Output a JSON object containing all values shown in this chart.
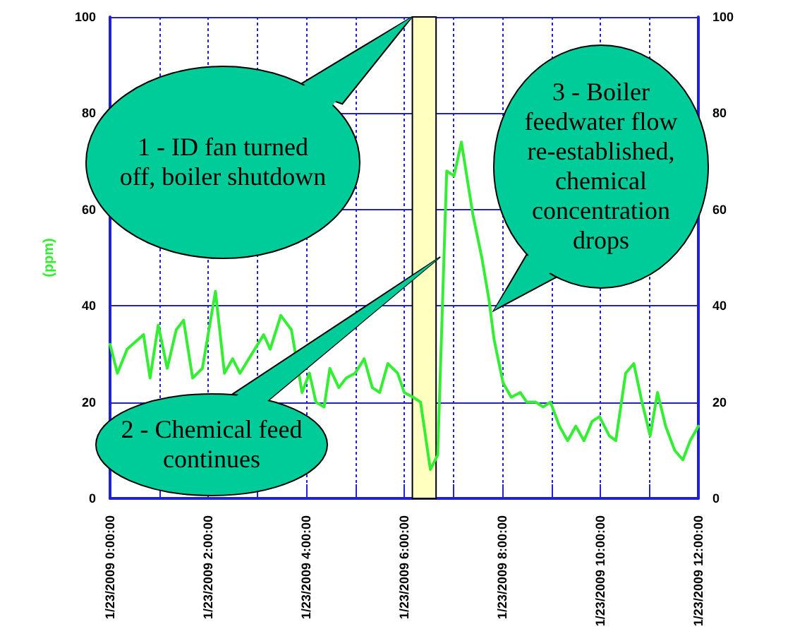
{
  "chart_data": {
    "type": "line",
    "ylabel": "(ppm)",
    "x": [
      "2009-01-23T00:00",
      "2009-01-23T00:09",
      "2009-01-23T00:21",
      "2009-01-23T00:41",
      "2009-01-23T00:49",
      "2009-01-23T00:59",
      "2009-01-23T01:10",
      "2009-01-23T01:21",
      "2009-01-23T01:30",
      "2009-01-23T01:41",
      "2009-01-23T01:53",
      "2009-01-23T02:09",
      "2009-01-23T02:20",
      "2009-01-23T02:30",
      "2009-01-23T02:39",
      "2009-01-23T03:08",
      "2009-01-23T03:16",
      "2009-01-23T03:29",
      "2009-01-23T03:42",
      "2009-01-23T03:55",
      "2009-01-23T04:04",
      "2009-01-23T04:12",
      "2009-01-23T04:22",
      "2009-01-23T04:29",
      "2009-01-23T04:40",
      "2009-01-23T04:49",
      "2009-01-23T05:00",
      "2009-01-23T05:11",
      "2009-01-23T05:21",
      "2009-01-23T05:30",
      "2009-01-23T05:40",
      "2009-01-23T05:52",
      "2009-01-23T06:00",
      "2009-01-23T06:11",
      "2009-01-23T06:20",
      "2009-01-23T06:32",
      "2009-01-23T06:41",
      "2009-01-23T06:52",
      "2009-01-23T07:01",
      "2009-01-23T07:10",
      "2009-01-23T07:24",
      "2009-01-23T07:35",
      "2009-01-23T07:44",
      "2009-01-23T07:50",
      "2009-01-23T08:01",
      "2009-01-23T08:11",
      "2009-01-23T08:22",
      "2009-01-23T08:30",
      "2009-01-23T08:41",
      "2009-01-23T08:50",
      "2009-01-23T08:59",
      "2009-01-23T09:10",
      "2009-01-23T09:20",
      "2009-01-23T09:30",
      "2009-01-23T09:40",
      "2009-01-23T09:50",
      "2009-01-23T09:59",
      "2009-01-23T10:11",
      "2009-01-23T10:19",
      "2009-01-23T10:31",
      "2009-01-23T10:41",
      "2009-01-23T10:51",
      "2009-01-23T11:01",
      "2009-01-23T11:10",
      "2009-01-23T11:20",
      "2009-01-23T11:31",
      "2009-01-23T11:41",
      "2009-01-23T11:50",
      "2009-01-23T12:00"
    ],
    "series": [
      {
        "color": "#33ee33",
        "values": [
          32,
          26,
          31,
          34,
          25,
          36,
          27,
          35,
          37,
          25,
          27,
          43,
          26,
          29,
          26,
          34,
          31,
          38,
          35,
          22,
          26,
          20,
          19,
          27,
          23,
          25,
          26,
          29,
          23,
          22,
          28,
          26,
          22,
          21,
          20,
          6,
          9,
          68,
          67,
          74,
          59,
          50,
          41,
          33,
          24,
          21,
          22,
          20,
          20,
          19,
          20,
          15,
          12,
          15,
          12,
          16,
          17,
          13,
          12,
          26,
          28,
          20,
          13,
          22,
          15,
          10,
          8,
          12,
          15
        ]
      }
    ],
    "xlim": [
      "2009-01-23T00:00",
      "2009-01-23T12:00"
    ],
    "xticks": [
      {
        "value": "2009-01-23T00:00",
        "label": "1/23/2009 0:00:00"
      },
      {
        "value": "2009-01-23T01:00",
        "label": null
      },
      {
        "value": "2009-01-23T02:00",
        "label": "1/23/2009 2:00:00"
      },
      {
        "value": "2009-01-23T03:00",
        "label": null
      },
      {
        "value": "2009-01-23T04:00",
        "label": "1/23/2009 4:00:00"
      },
      {
        "value": "2009-01-23T05:00",
        "label": null
      },
      {
        "value": "2009-01-23T06:00",
        "label": "1/23/2009 6:00:00"
      },
      {
        "value": "2009-01-23T07:00",
        "label": null
      },
      {
        "value": "2009-01-23T08:00",
        "label": "1/23/2009 8:00:00"
      },
      {
        "value": "2009-01-23T09:00",
        "label": null
      },
      {
        "value": "2009-01-23T10:00",
        "label": "1/23/2009 10:00:00"
      },
      {
        "value": "2009-01-23T11:00",
        "label": null
      },
      {
        "value": "2009-01-23T12:00",
        "label": "1/23/2009 12:00:00"
      }
    ],
    "ylim": [
      0,
      100
    ],
    "yticks": [
      0,
      20,
      40,
      60,
      80,
      100
    ],
    "y2lim": [
      0,
      100
    ],
    "y2ticks": [
      0,
      20,
      40,
      60,
      80,
      100
    ],
    "bands": [
      {
        "axis": "x",
        "from": "2009-01-23T06:10",
        "to": "2009-01-23T06:39",
        "color": "#ffffc0"
      }
    ],
    "annotations": [
      "1 - ID fan turned off, boiler shutdown",
      "2 - Chemical feed continues",
      "3 - Boiler feedwater flow re-established, chemical concentration drops"
    ],
    "grid": true,
    "marker": "none",
    "line_style": "solid"
  }
}
